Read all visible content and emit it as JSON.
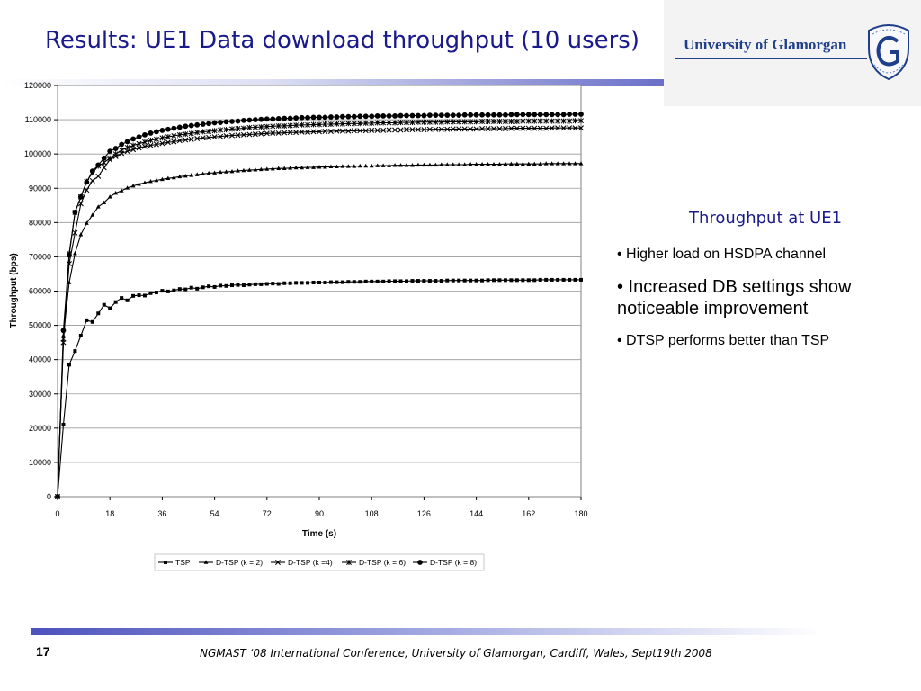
{
  "slide": {
    "title": "Results: UE1 Data download throughput (10 users)",
    "page_number": "17",
    "footer": "NGMAST ‘08 International Conference, University of Glamorgan, Cardiff,  Wales, Sept19th  2008"
  },
  "logo": {
    "text": "University of Glamorgan"
  },
  "side_panel": {
    "heading": "Throughput at UE1",
    "bullets": [
      "• Higher load on HSDPA channel",
      "• Increased DB settings show noticeable improvement",
      "• DTSP performs better than TSP"
    ]
  },
  "colors": {
    "title": "#1a1a8c",
    "accent_band": "#5a5fc4",
    "series": "#000000"
  },
  "chart_data": {
    "type": "line",
    "xlabel": "Time (s)",
    "ylabel": "Throughput (bps)",
    "xlim": [
      0,
      180
    ],
    "ylim": [
      0,
      120000
    ],
    "xticks": [
      0,
      18,
      36,
      54,
      72,
      90,
      108,
      126,
      144,
      162,
      180
    ],
    "yticks": [
      0,
      10000,
      20000,
      30000,
      40000,
      50000,
      60000,
      70000,
      80000,
      90000,
      100000,
      110000,
      120000
    ],
    "grid": "horizontal",
    "legend_position": "bottom",
    "x": [
      0,
      2,
      4,
      6,
      8,
      10,
      12,
      14,
      16,
      18,
      20,
      22,
      24,
      26,
      28,
      30,
      32,
      34,
      36,
      38,
      40,
      42,
      44,
      46,
      48,
      50,
      52,
      54,
      56,
      58,
      60,
      62,
      64,
      66,
      68,
      70,
      72,
      74,
      76,
      78,
      80,
      82,
      84,
      86,
      88,
      90,
      92,
      94,
      96,
      98,
      100,
      102,
      104,
      106,
      108,
      110,
      112,
      114,
      116,
      118,
      120,
      122,
      124,
      126,
      128,
      130,
      132,
      134,
      136,
      138,
      140,
      142,
      144,
      146,
      148,
      150,
      152,
      154,
      156,
      158,
      160,
      162,
      164,
      166,
      168,
      170,
      172,
      174,
      176,
      178,
      180
    ],
    "series": [
      {
        "name": "TSP",
        "marker": "square",
        "values": [
          0,
          21000,
          38500,
          42500,
          47000,
          51500,
          51000,
          53500,
          56000,
          55000,
          56800,
          58000,
          57300,
          58600,
          58800,
          58700,
          59400,
          59600,
          60100,
          59900,
          60200,
          60600,
          60500,
          61000,
          60700,
          61100,
          61400,
          61200,
          61600,
          61500,
          61700,
          61800,
          61700,
          61900,
          62000,
          62000,
          62100,
          62200,
          62100,
          62300,
          62300,
          62400,
          62400,
          62400,
          62500,
          62500,
          62500,
          62600,
          62600,
          62600,
          62700,
          62700,
          62700,
          62800,
          62800,
          62800,
          62800,
          62900,
          62900,
          62900,
          62900,
          63000,
          63000,
          63000,
          63000,
          63000,
          63000,
          63100,
          63100,
          63100,
          63100,
          63100,
          63100,
          63100,
          63200,
          63200,
          63200,
          63200,
          63200,
          63200,
          63200,
          63200,
          63200,
          63300,
          63300,
          63300,
          63300,
          63300,
          63300,
          63300,
          63300
        ]
      },
      {
        "name": "D-TSP (k = 2)",
        "marker": "triangle",
        "values": [
          0,
          47000,
          62500,
          71000,
          76500,
          79800,
          82200,
          84600,
          85800,
          87500,
          88600,
          89300,
          90100,
          90700,
          91200,
          91600,
          92000,
          92300,
          92600,
          92900,
          93100,
          93400,
          93600,
          93800,
          94000,
          94200,
          94400,
          94500,
          94700,
          94800,
          94900,
          95100,
          95200,
          95300,
          95400,
          95500,
          95600,
          95700,
          95800,
          95800,
          95900,
          96000,
          96000,
          96100,
          96100,
          96200,
          96200,
          96300,
          96300,
          96400,
          96400,
          96400,
          96500,
          96500,
          96500,
          96600,
          96600,
          96600,
          96700,
          96700,
          96700,
          96700,
          96800,
          96800,
          96800,
          96800,
          96900,
          96900,
          96900,
          96900,
          96900,
          97000,
          97000,
          97000,
          97000,
          97000,
          97000,
          97100,
          97100,
          97100,
          97100,
          97100,
          97100,
          97100,
          97200,
          97200,
          97200,
          97200,
          97200,
          97200,
          97200
        ]
      },
      {
        "name": "D-TSP (k =4)",
        "marker": "x",
        "values": [
          0,
          45000,
          68000,
          77000,
          85500,
          89500,
          92200,
          93500,
          96000,
          98300,
          99300,
          100200,
          100800,
          101300,
          101800,
          102200,
          102500,
          102800,
          103100,
          103400,
          103600,
          103900,
          104100,
          104300,
          104500,
          104700,
          104800,
          105000,
          105100,
          105300,
          105400,
          105500,
          105600,
          105700,
          105800,
          105900,
          106000,
          106100,
          106100,
          106200,
          106300,
          106300,
          106400,
          106400,
          106500,
          106500,
          106600,
          106600,
          106700,
          106700,
          106700,
          106800,
          106800,
          106800,
          106900,
          106900,
          106900,
          107000,
          107000,
          107000,
          107100,
          107100,
          107100,
          107100,
          107200,
          107200,
          107200,
          107200,
          107300,
          107300,
          107300,
          107300,
          107300,
          107400,
          107400,
          107400,
          107400,
          107400,
          107500,
          107500,
          107500,
          107500,
          107500,
          107500,
          107500,
          107600,
          107600,
          107600,
          107600,
          107600,
          107600
        ]
      },
      {
        "name": "D-TSP (k = 6)",
        "marker": "star",
        "values": [
          0,
          46000,
          71000,
          83000,
          87500,
          92000,
          94500,
          96500,
          97500,
          98800,
          100000,
          101100,
          101900,
          102500,
          103000,
          103500,
          104000,
          104300,
          104700,
          105000,
          105300,
          105600,
          105800,
          106000,
          106300,
          106500,
          106600,
          106800,
          107000,
          107100,
          107300,
          107400,
          107500,
          107700,
          107800,
          107900,
          108000,
          108100,
          108200,
          108200,
          108300,
          108400,
          108500,
          108500,
          108600,
          108600,
          108700,
          108700,
          108800,
          108800,
          108900,
          108900,
          108900,
          109000,
          109000,
          109100,
          109100,
          109100,
          109100,
          109200,
          109200,
          109200,
          109300,
          109300,
          109300,
          109300,
          109300,
          109400,
          109400,
          109400,
          109400,
          109400,
          109400,
          109500,
          109500,
          109500,
          109500,
          109500,
          109500,
          109500,
          109600,
          109600,
          109600,
          109600,
          109600,
          109600,
          109600,
          109600,
          109600,
          109700,
          109700
        ]
      },
      {
        "name": "D-TSP (k = 8)",
        "marker": "circle",
        "values": [
          0,
          48500,
          70500,
          83000,
          87500,
          91800,
          95000,
          96800,
          98800,
          100800,
          101600,
          102800,
          103600,
          104400,
          105000,
          105600,
          106100,
          106500,
          106900,
          107200,
          107500,
          107800,
          108100,
          108300,
          108500,
          108700,
          108900,
          109100,
          109200,
          109400,
          109500,
          109600,
          109800,
          109900,
          110000,
          110100,
          110200,
          110200,
          110300,
          110400,
          110400,
          110500,
          110600,
          110600,
          110700,
          110700,
          110700,
          110800,
          110800,
          110900,
          110900,
          110900,
          111000,
          111000,
          111000,
          111100,
          111100,
          111100,
          111100,
          111200,
          111200,
          111200,
          111200,
          111200,
          111300,
          111300,
          111300,
          111300,
          111300,
          111300,
          111400,
          111400,
          111400,
          111400,
          111400,
          111400,
          111400,
          111400,
          111500,
          111500,
          111500,
          111500,
          111500,
          111500,
          111500,
          111500,
          111500,
          111500,
          111600,
          111600,
          111600
        ]
      }
    ]
  }
}
